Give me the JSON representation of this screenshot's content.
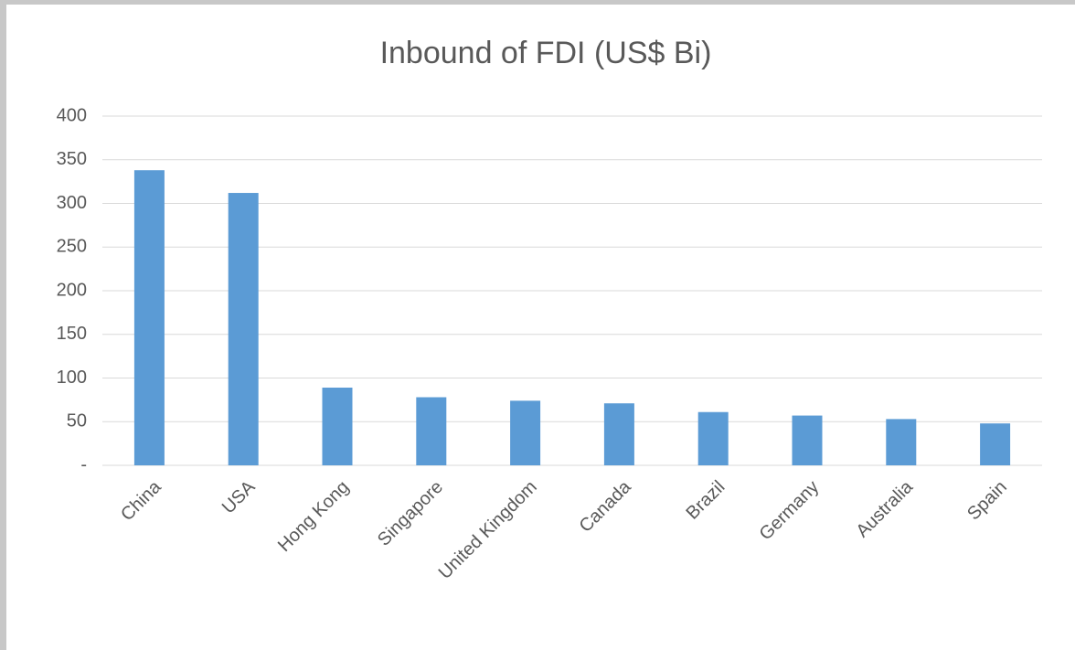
{
  "chart_data": {
    "type": "bar",
    "title": "Inbound of FDI (US$ Bi)",
    "categories": [
      "China",
      "USA",
      "Hong Kong",
      "Singapore",
      "United Kingdom",
      "Canada",
      "Brazil",
      "Germany",
      "Australia",
      "Spain"
    ],
    "values": [
      338,
      312,
      89,
      78,
      74,
      71,
      61,
      57,
      53,
      48
    ],
    "color": "#5b9bd5",
    "ylim": [
      0,
      400
    ],
    "yticks": [
      {
        "value": 0,
        "label": "-"
      },
      50,
      100,
      150,
      200,
      250,
      300,
      350,
      400
    ],
    "grid": true
  }
}
